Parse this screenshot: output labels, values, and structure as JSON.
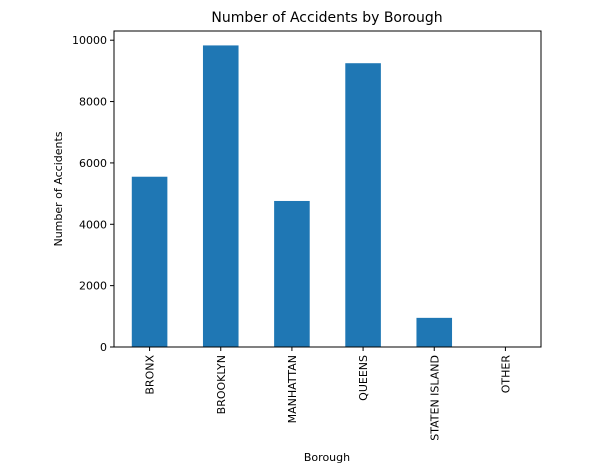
{
  "chart_data": {
    "type": "bar",
    "title": "Number of Accidents by Borough",
    "xlabel": "Borough",
    "ylabel": "Number of Accidents",
    "categories": [
      "BRONX",
      "BROOKLYN",
      "MANHATTAN",
      "QUEENS",
      "STATEN ISLAND",
      "OTHER"
    ],
    "values": [
      5550,
      9830,
      4760,
      9250,
      950,
      0
    ],
    "ylim": [
      0,
      10300
    ],
    "yticks": [
      0,
      2000,
      4000,
      6000,
      8000,
      10000
    ],
    "ytick_labels": [
      "0",
      "2000",
      "4000",
      "6000",
      "8000",
      "10000"
    ],
    "bar_color": "#1f77b4",
    "grid": false,
    "legend": "none"
  }
}
